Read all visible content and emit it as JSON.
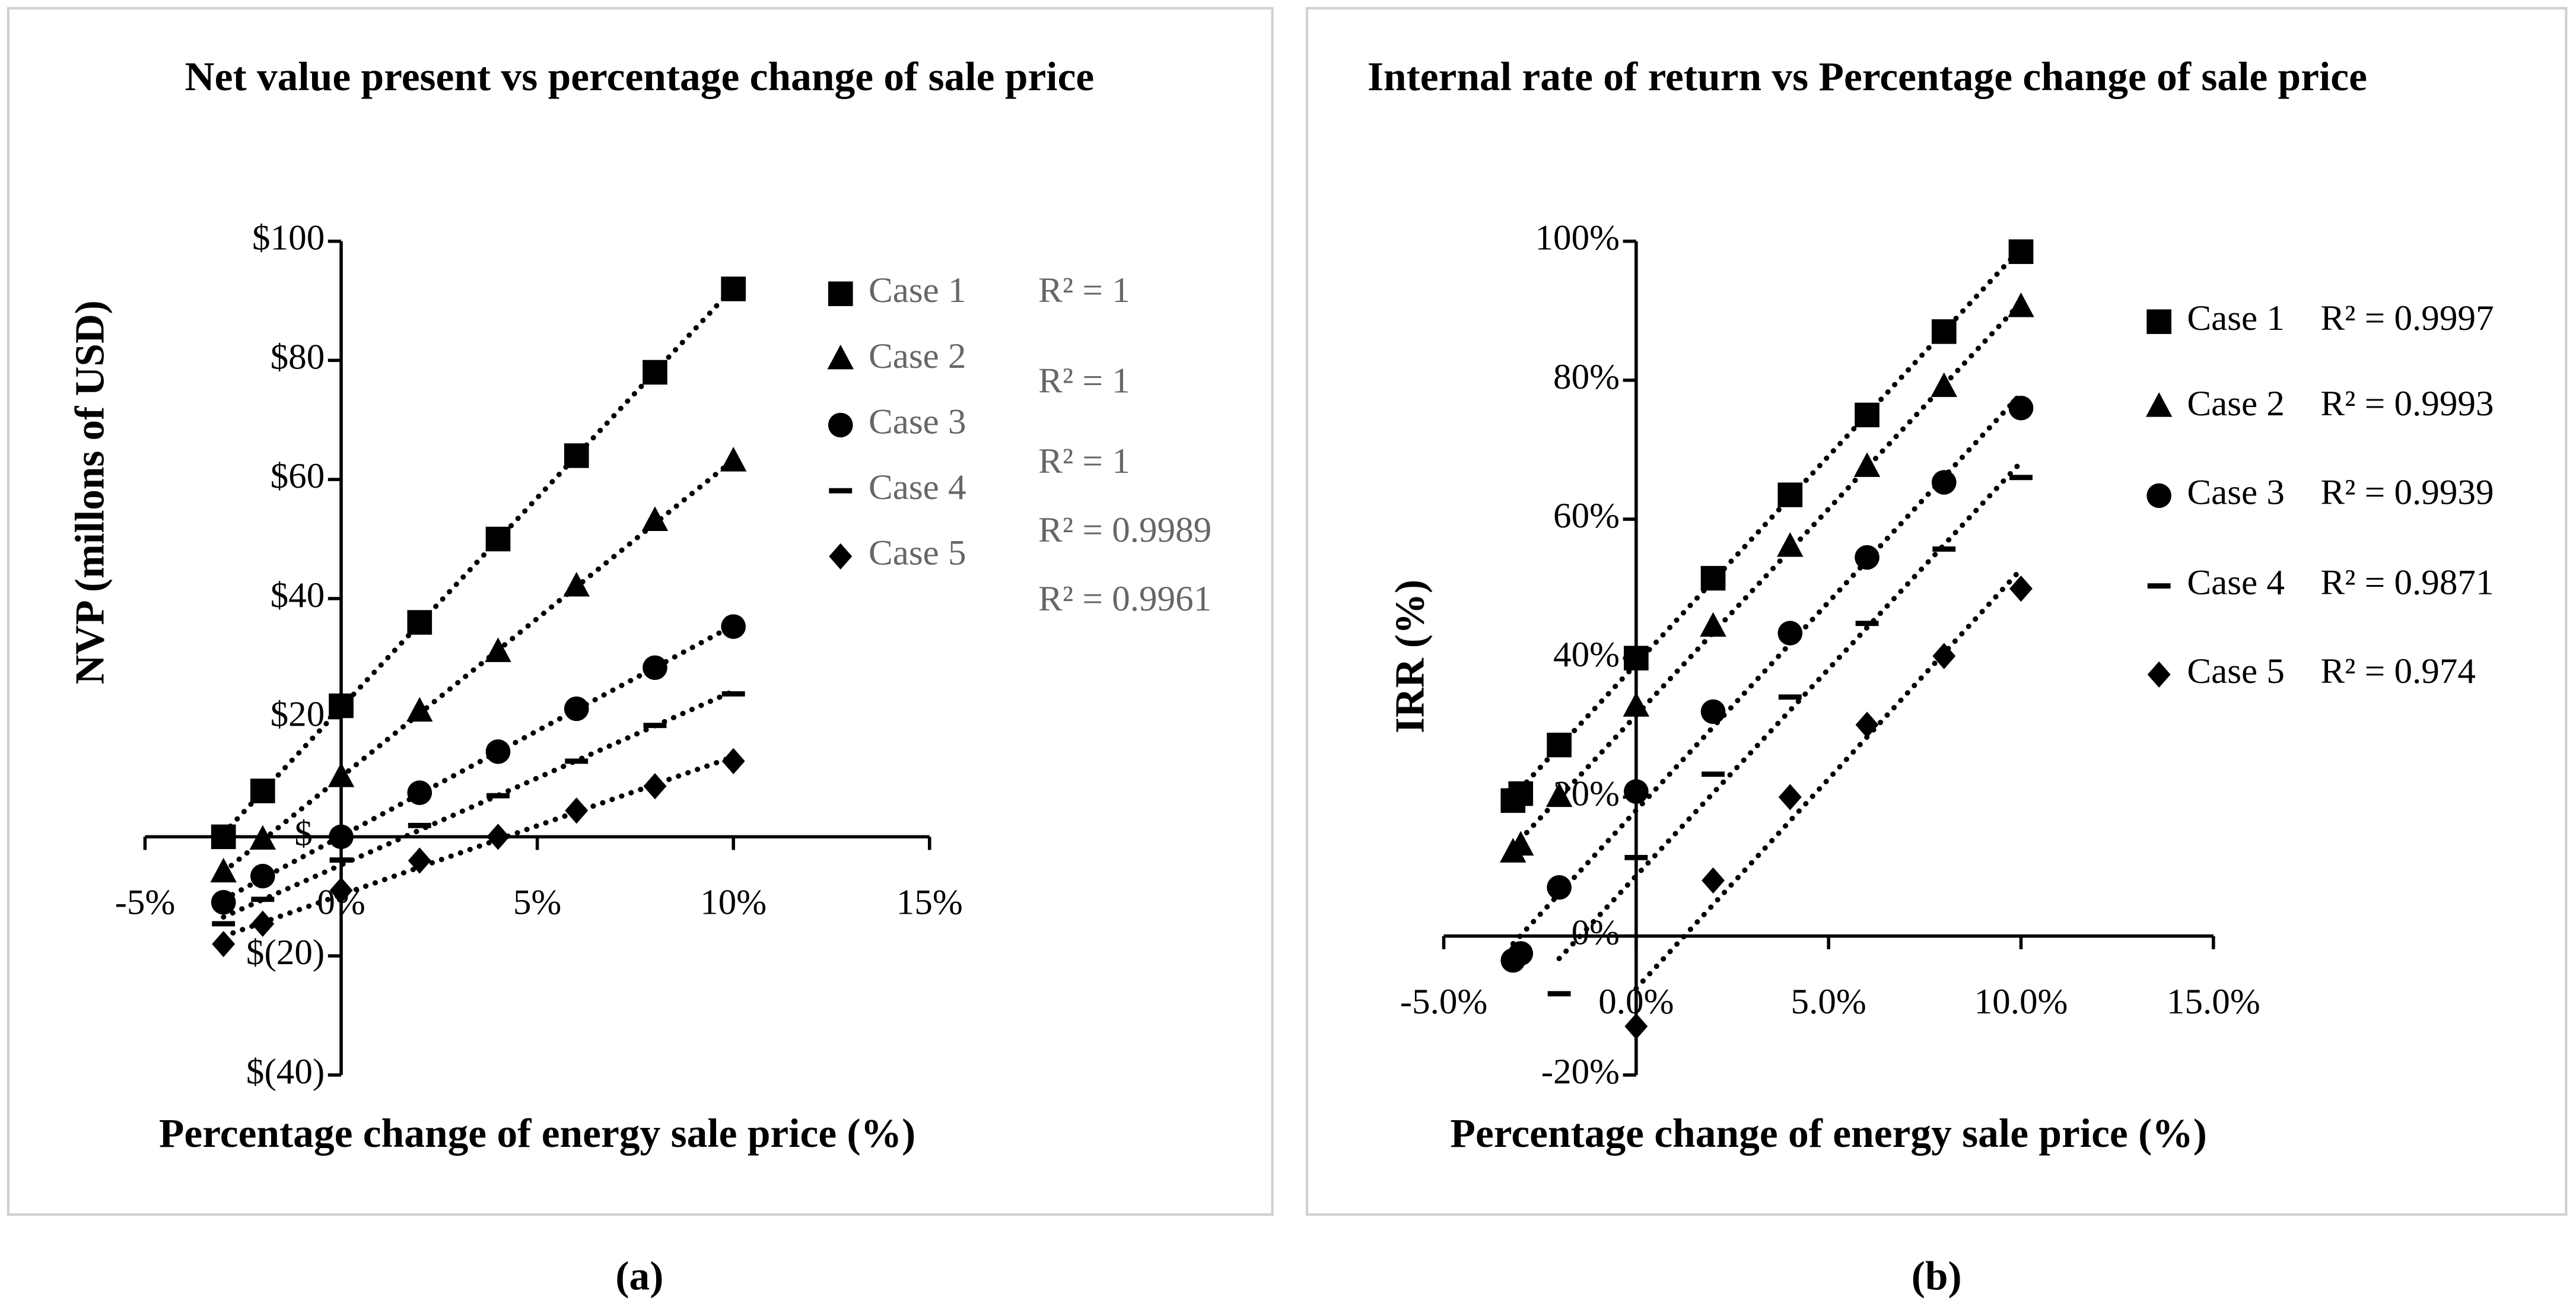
{
  "chart_data": [
    {
      "type": "scatter",
      "title": "Net value present vs percentage change of sale price",
      "xlabel": "Percentage change of energy sale price (%)",
      "ylabel": "NVP (millons of USD)",
      "caption": "(a)",
      "xlim": [
        -5,
        15
      ],
      "ylim": [
        -40,
        100
      ],
      "xticks": [
        {
          "value": -5,
          "label": "-5%"
        },
        {
          "value": 0,
          "label": "0%"
        },
        {
          "value": 5,
          "label": "5%"
        },
        {
          "value": 10,
          "label": "10%"
        },
        {
          "value": 15,
          "label": "15%"
        }
      ],
      "yticks": [
        {
          "value": 100,
          "label": "$100"
        },
        {
          "value": 80,
          "label": "$80"
        },
        {
          "value": 60,
          "label": "$60"
        },
        {
          "value": 40,
          "label": "$40"
        },
        {
          "value": 20,
          "label": "$20"
        },
        {
          "value": 0,
          "label": "$-"
        },
        {
          "value": -20,
          "label": "$(20)"
        },
        {
          "value": -40,
          "label": "$(40)"
        }
      ],
      "x": [
        -3,
        -2,
        0,
        2,
        4,
        6,
        8,
        10
      ],
      "legend_color": "#666666",
      "series": [
        {
          "name": "Case 1",
          "marker": "square",
          "color": "#000000",
          "r2_label": "R² = 1",
          "values": [
            0,
            7.7,
            22,
            36,
            50,
            64,
            78,
            92
          ]
        },
        {
          "name": "Case 2",
          "marker": "triangle",
          "color": "#000000",
          "r2_label": "R² = 1",
          "values": [
            -6,
            -0.5,
            10,
            21,
            31,
            42,
            53,
            63
          ]
        },
        {
          "name": "Case 3",
          "marker": "circle",
          "color": "#000000",
          "r2_label": "R² = 1",
          "values": [
            -11,
            -6.6,
            0,
            7.4,
            14.3,
            21.5,
            28.4,
            35.3
          ]
        },
        {
          "name": "Case 4",
          "marker": "dash",
          "color": "#000000",
          "r2_label": "R² = 0.9989",
          "values": [
            -14.6,
            -10.5,
            -3.9,
            1.9,
            6.9,
            12.7,
            18.7,
            24
          ]
        },
        {
          "name": "Case 5",
          "marker": "diamond",
          "color": "#000000",
          "r2_label": "R² = 0.9961",
          "values": [
            -18,
            -14.6,
            -9,
            -4,
            0,
            4.4,
            8.5,
            12.7
          ]
        }
      ]
    },
    {
      "type": "scatter",
      "title": "Internal rate of return vs Percentage change of sale price",
      "xlabel": "Percentage change of energy sale price (%)",
      "ylabel": "IRR (%)",
      "caption": "(b)",
      "xlim": [
        -5,
        15
      ],
      "ylim": [
        -20,
        100
      ],
      "xticks": [
        {
          "value": -5,
          "label": "-5.0%"
        },
        {
          "value": 0,
          "label": "0.0%"
        },
        {
          "value": 5,
          "label": "5.0%"
        },
        {
          "value": 10,
          "label": "10.0%"
        },
        {
          "value": 15,
          "label": "15.0%"
        }
      ],
      "yticks": [
        {
          "value": 100,
          "label": "100%"
        },
        {
          "value": 80,
          "label": "80%"
        },
        {
          "value": 60,
          "label": "60%"
        },
        {
          "value": 40,
          "label": "40%"
        },
        {
          "value": 20,
          "label": "20%"
        },
        {
          "value": 0,
          "label": "0%"
        },
        {
          "value": -20,
          "label": "-20%"
        }
      ],
      "legend_color": "#000000",
      "series": [
        {
          "name": "Case 1",
          "marker": "square",
          "color": "#000000",
          "r2_label": "R² = 0.9997",
          "x": [
            -3.2,
            -3,
            -2,
            0,
            2,
            4,
            6,
            8,
            10
          ],
          "values": [
            19.5,
            20.5,
            27.5,
            40,
            51.5,
            63.5,
            75,
            87,
            98.5
          ]
        },
        {
          "name": "Case 2",
          "marker": "triangle",
          "color": "#000000",
          "r2_label": "R² = 0.9993",
          "x": [
            -3.2,
            -3,
            -2,
            0,
            2,
            4,
            6,
            8,
            10
          ],
          "values": [
            12,
            13,
            20,
            33,
            44.5,
            56,
            67.5,
            79,
            90.5
          ]
        },
        {
          "name": "Case 3",
          "marker": "circle",
          "color": "#000000",
          "r2_label": "R² = 0.9939",
          "x": [
            -3.2,
            -3,
            -2,
            0,
            2,
            4,
            6,
            8,
            10
          ],
          "values": [
            -3.5,
            -2.5,
            7,
            20.8,
            32.3,
            43.6,
            54.5,
            65.3,
            76
          ]
        },
        {
          "name": "Case 4",
          "marker": "dash",
          "color": "#000000",
          "r2_label": "R² = 0.9871",
          "x": [
            -2,
            0,
            2,
            4,
            6,
            8,
            10
          ],
          "values": [
            -8.3,
            11.3,
            23.3,
            34.4,
            45,
            55.7,
            66
          ]
        },
        {
          "name": "Case 5",
          "marker": "diamond",
          "color": "#000000",
          "r2_label": "R² = 0.974",
          "x": [
            0,
            2,
            4,
            6,
            8,
            10
          ],
          "values": [
            -13,
            8,
            20,
            30.4,
            40.3,
            50
          ]
        }
      ]
    }
  ]
}
